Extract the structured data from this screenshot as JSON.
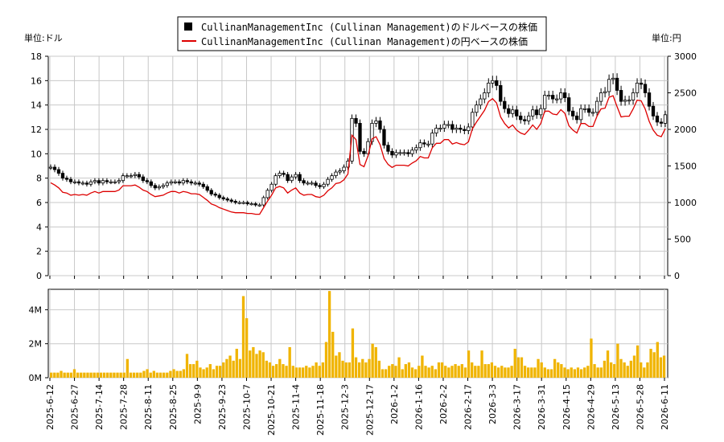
{
  "chart_data": [
    {
      "type": "candlestick",
      "title": "",
      "left_unit_label": "単位:ドル",
      "right_unit_label": "単位:円",
      "legend_placement": "top-center",
      "legend": [
        {
          "label": "CullinanManagementInc (Cullinan Management)のドルベースの株価",
          "color": "#000000",
          "marker": "square"
        },
        {
          "label": "CullinanManagementInc (Cullinan Management)の円ベースの株価",
          "color": "#dd0000",
          "marker": "line"
        }
      ],
      "y_left": {
        "min": 0,
        "max": 18,
        "ticks": [
          0,
          2,
          4,
          6,
          8,
          10,
          12,
          14,
          16,
          18
        ]
      },
      "y_right": {
        "min": 0,
        "max": 3000,
        "ticks": [
          0,
          500,
          1000,
          1500,
          2000,
          2500,
          3000
        ]
      },
      "grid": true,
      "x_ticks": [
        "2025-6-12",
        "2025-6-27",
        "2025-7-14",
        "2025-7-28",
        "2025-8-11",
        "2025-8-25",
        "2025-9-9",
        "2025-9-23",
        "2025-10-7",
        "2025-10-21",
        "2025-11-4",
        "2025-11-18",
        "2025-12-3",
        "2025-12-17",
        "2026-1-2",
        "2026-1-16",
        "2026-2-2",
        "2026-2-17",
        "2026-3-3",
        "2026-3-17",
        "2026-3-31",
        "2026-4-15",
        "2026-4-29",
        "2026-5-13",
        "2026-5-28",
        "2026-6-11"
      ],
      "series": [
        {
          "name": "CullinanManagementInc (Cullinan Management)のドルベースの株価",
          "axis": "left",
          "color": "#000000",
          "close": [
            8.9,
            8.7,
            8.4,
            8.0,
            7.9,
            7.7,
            7.7,
            7.6,
            7.6,
            7.5,
            7.7,
            7.8,
            7.6,
            7.8,
            7.7,
            7.7,
            7.7,
            7.8,
            8.2,
            8.2,
            8.2,
            8.3,
            8.1,
            7.8,
            7.7,
            7.4,
            7.2,
            7.3,
            7.4,
            7.6,
            7.7,
            7.7,
            7.6,
            7.8,
            7.7,
            7.6,
            7.6,
            7.5,
            7.3,
            7.0,
            6.7,
            6.6,
            6.4,
            6.3,
            6.2,
            6.1,
            6.0,
            6.0,
            6.0,
            5.9,
            5.9,
            5.8,
            5.8,
            6.4,
            7.0,
            7.5,
            8.2,
            8.4,
            8.3,
            7.8,
            8.1,
            8.3,
            7.8,
            7.6,
            7.6,
            7.6,
            7.4,
            7.3,
            7.5,
            7.9,
            8.2,
            8.5,
            8.6,
            8.9,
            9.4,
            12.9,
            12.5,
            10.2,
            10.0,
            11.0,
            12.5,
            12.7,
            12.0,
            10.7,
            10.2,
            9.9,
            10.1,
            10.1,
            10.1,
            10.0,
            10.3,
            10.5,
            10.9,
            10.8,
            10.8,
            11.7,
            12.1,
            12.1,
            12.4,
            12.4,
            12.0,
            12.1,
            12.0,
            11.9,
            12.2,
            13.4,
            14.0,
            14.5,
            15.0,
            15.8,
            16.0,
            15.6,
            14.3,
            13.7,
            13.3,
            13.6,
            13.1,
            12.8,
            12.7,
            13.1,
            13.6,
            13.2,
            13.7,
            14.8,
            14.8,
            14.5,
            14.5,
            15.0,
            14.6,
            13.5,
            13.1,
            12.8,
            13.7,
            13.7,
            13.4,
            13.4,
            14.3,
            15.0,
            15.1,
            16.1,
            16.2,
            15.2,
            14.3,
            14.4,
            14.4,
            15.0,
            15.8,
            15.7,
            15.0,
            13.9,
            13.1,
            12.6,
            12.5,
            13.2
          ]
        },
        {
          "name": "CullinanManagementInc (Cullinan Management)の円ベースの株価",
          "axis": "right",
          "color": "#dd0000",
          "values": [
            1270,
            1240,
            1200,
            1140,
            1130,
            1100,
            1110,
            1100,
            1110,
            1100,
            1130,
            1150,
            1130,
            1150,
            1150,
            1150,
            1150,
            1170,
            1230,
            1230,
            1230,
            1240,
            1210,
            1170,
            1150,
            1110,
            1080,
            1090,
            1100,
            1130,
            1150,
            1150,
            1130,
            1150,
            1140,
            1120,
            1120,
            1110,
            1070,
            1030,
            980,
            960,
            930,
            910,
            890,
            870,
            860,
            860,
            860,
            850,
            850,
            840,
            840,
            930,
            1020,
            1100,
            1200,
            1220,
            1200,
            1130,
            1170,
            1200,
            1130,
            1100,
            1110,
            1110,
            1080,
            1070,
            1100,
            1160,
            1200,
            1260,
            1270,
            1310,
            1390,
            1920,
            1860,
            1520,
            1490,
            1640,
            1870,
            1900,
            1790,
            1600,
            1520,
            1480,
            1510,
            1510,
            1510,
            1500,
            1540,
            1570,
            1630,
            1610,
            1610,
            1750,
            1810,
            1810,
            1860,
            1860,
            1800,
            1820,
            1800,
            1790,
            1830,
            2010,
            2100,
            2180,
            2260,
            2380,
            2420,
            2360,
            2170,
            2080,
            2020,
            2060,
            1990,
            1950,
            1930,
            1990,
            2060,
            2000,
            2080,
            2250,
            2250,
            2210,
            2200,
            2270,
            2220,
            2050,
            1990,
            1950,
            2080,
            2080,
            2040,
            2040,
            2180,
            2280,
            2290,
            2440,
            2460,
            2310,
            2170,
            2180,
            2180,
            2280,
            2400,
            2390,
            2280,
            2110,
            1990,
            1920,
            1900,
            2010
          ]
        }
      ]
    },
    {
      "type": "bar",
      "title": "",
      "series_name": "出来高",
      "color": "#f0b400",
      "y": {
        "min": 0,
        "max": 5200000,
        "ticks": [
          0,
          2000000,
          4000000
        ],
        "tick_labels": [
          "0M",
          "2M",
          "4M"
        ]
      },
      "values": [
        0.3,
        0.3,
        0.3,
        0.4,
        0.3,
        0.3,
        0.3,
        0.5,
        0.3,
        0.3,
        0.3,
        0.3,
        0.3,
        0.3,
        0.3,
        0.3,
        0.3,
        0.3,
        0.3,
        0.3,
        0.3,
        0.3,
        0.3,
        1.1,
        0.3,
        0.3,
        0.3,
        0.3,
        0.4,
        0.5,
        0.3,
        0.4,
        0.3,
        0.3,
        0.3,
        0.3,
        0.4,
        0.5,
        0.4,
        0.4,
        0.5,
        1.4,
        0.8,
        0.8,
        1.0,
        0.6,
        0.5,
        0.6,
        0.8,
        0.5,
        0.7,
        0.7,
        0.9,
        1.1,
        1.3,
        1.0,
        1.7,
        1.1,
        4.8,
        3.5,
        1.6,
        1.8,
        1.4,
        1.6,
        1.5,
        1.0,
        0.9,
        0.7,
        0.8,
        1.1,
        0.8,
        0.7,
        1.8,
        0.7,
        0.6,
        0.6,
        0.6,
        0.7,
        0.6,
        0.7,
        0.9,
        0.7,
        0.9,
        2.1,
        5.1,
        2.7,
        1.3,
        1.5,
        1.0,
        0.9,
        0.9,
        2.9,
        1.2,
        0.9,
        1.1,
        0.9,
        1.1,
        2.0,
        1.8,
        1.0,
        0.5,
        0.5,
        0.7,
        0.8,
        0.7,
        1.2,
        0.5,
        0.8,
        0.9,
        0.6,
        0.5,
        0.7,
        1.3,
        0.7,
        0.6,
        0.7,
        0.5,
        0.9,
        0.9,
        0.7,
        0.6,
        0.7,
        0.8,
        0.7,
        0.8,
        0.6,
        1.6,
        0.9,
        0.7,
        0.7,
        1.6,
        0.8,
        0.8,
        0.9,
        0.7,
        0.6,
        0.7,
        0.6,
        0.6,
        0.7,
        1.7,
        1.2,
        1.2,
        0.7,
        0.6,
        0.6,
        0.6,
        1.1,
        0.9,
        0.6,
        0.5,
        0.5,
        1.1,
        0.9,
        0.8,
        0.6,
        0.5,
        0.6,
        0.5,
        0.6,
        0.5,
        0.6,
        0.7,
        2.3,
        0.8,
        0.6,
        0.6,
        1.0,
        1.6,
        0.9,
        0.8,
        2.0,
        1.1,
        0.9,
        0.7,
        1.0,
        1.3,
        1.9,
        0.9,
        0.6,
        0.9,
        1.7,
        1.5,
        2.1,
        1.2,
        1.3
      ]
    }
  ]
}
